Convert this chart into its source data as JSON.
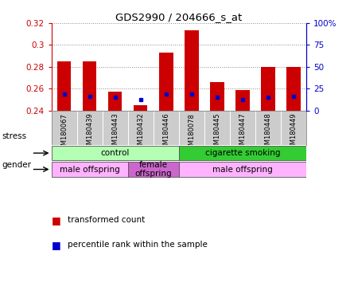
{
  "title": "GDS2990 / 204666_s_at",
  "samples": [
    "GSM180067",
    "GSM180439",
    "GSM180443",
    "GSM180432",
    "GSM180446",
    "GSM180078",
    "GSM180445",
    "GSM180447",
    "GSM180448",
    "GSM180449"
  ],
  "red_values": [
    0.285,
    0.285,
    0.257,
    0.245,
    0.293,
    0.313,
    0.266,
    0.259,
    0.28,
    0.28
  ],
  "blue_values": [
    0.255,
    0.253,
    0.252,
    0.25,
    0.255,
    0.255,
    0.252,
    0.25,
    0.252,
    0.253
  ],
  "ymin": 0.24,
  "ymax": 0.32,
  "y_ticks": [
    0.24,
    0.26,
    0.28,
    0.3,
    0.32
  ],
  "y_right_ticks": [
    0,
    25,
    50,
    75,
    100
  ],
  "stress_groups": [
    {
      "label": "control",
      "start": 0,
      "end": 5,
      "color": "#b3ffb3"
    },
    {
      "label": "cigarette smoking",
      "start": 5,
      "end": 10,
      "color": "#33cc33"
    }
  ],
  "gender_groups": [
    {
      "label": "male offspring",
      "start": 0,
      "end": 3,
      "color": "#ffb3ff"
    },
    {
      "label": "female\noffspring",
      "start": 3,
      "end": 5,
      "color": "#cc66cc"
    },
    {
      "label": "male offspring",
      "start": 5,
      "end": 10,
      "color": "#ffb3ff"
    }
  ],
  "bar_color": "#cc0000",
  "dot_color": "#0000cc",
  "label_bg_color": "#cccccc",
  "bg_color": "#ffffff",
  "axis_color_left": "#cc0000",
  "axis_color_right": "#0000cc",
  "grid_color": "#888888"
}
